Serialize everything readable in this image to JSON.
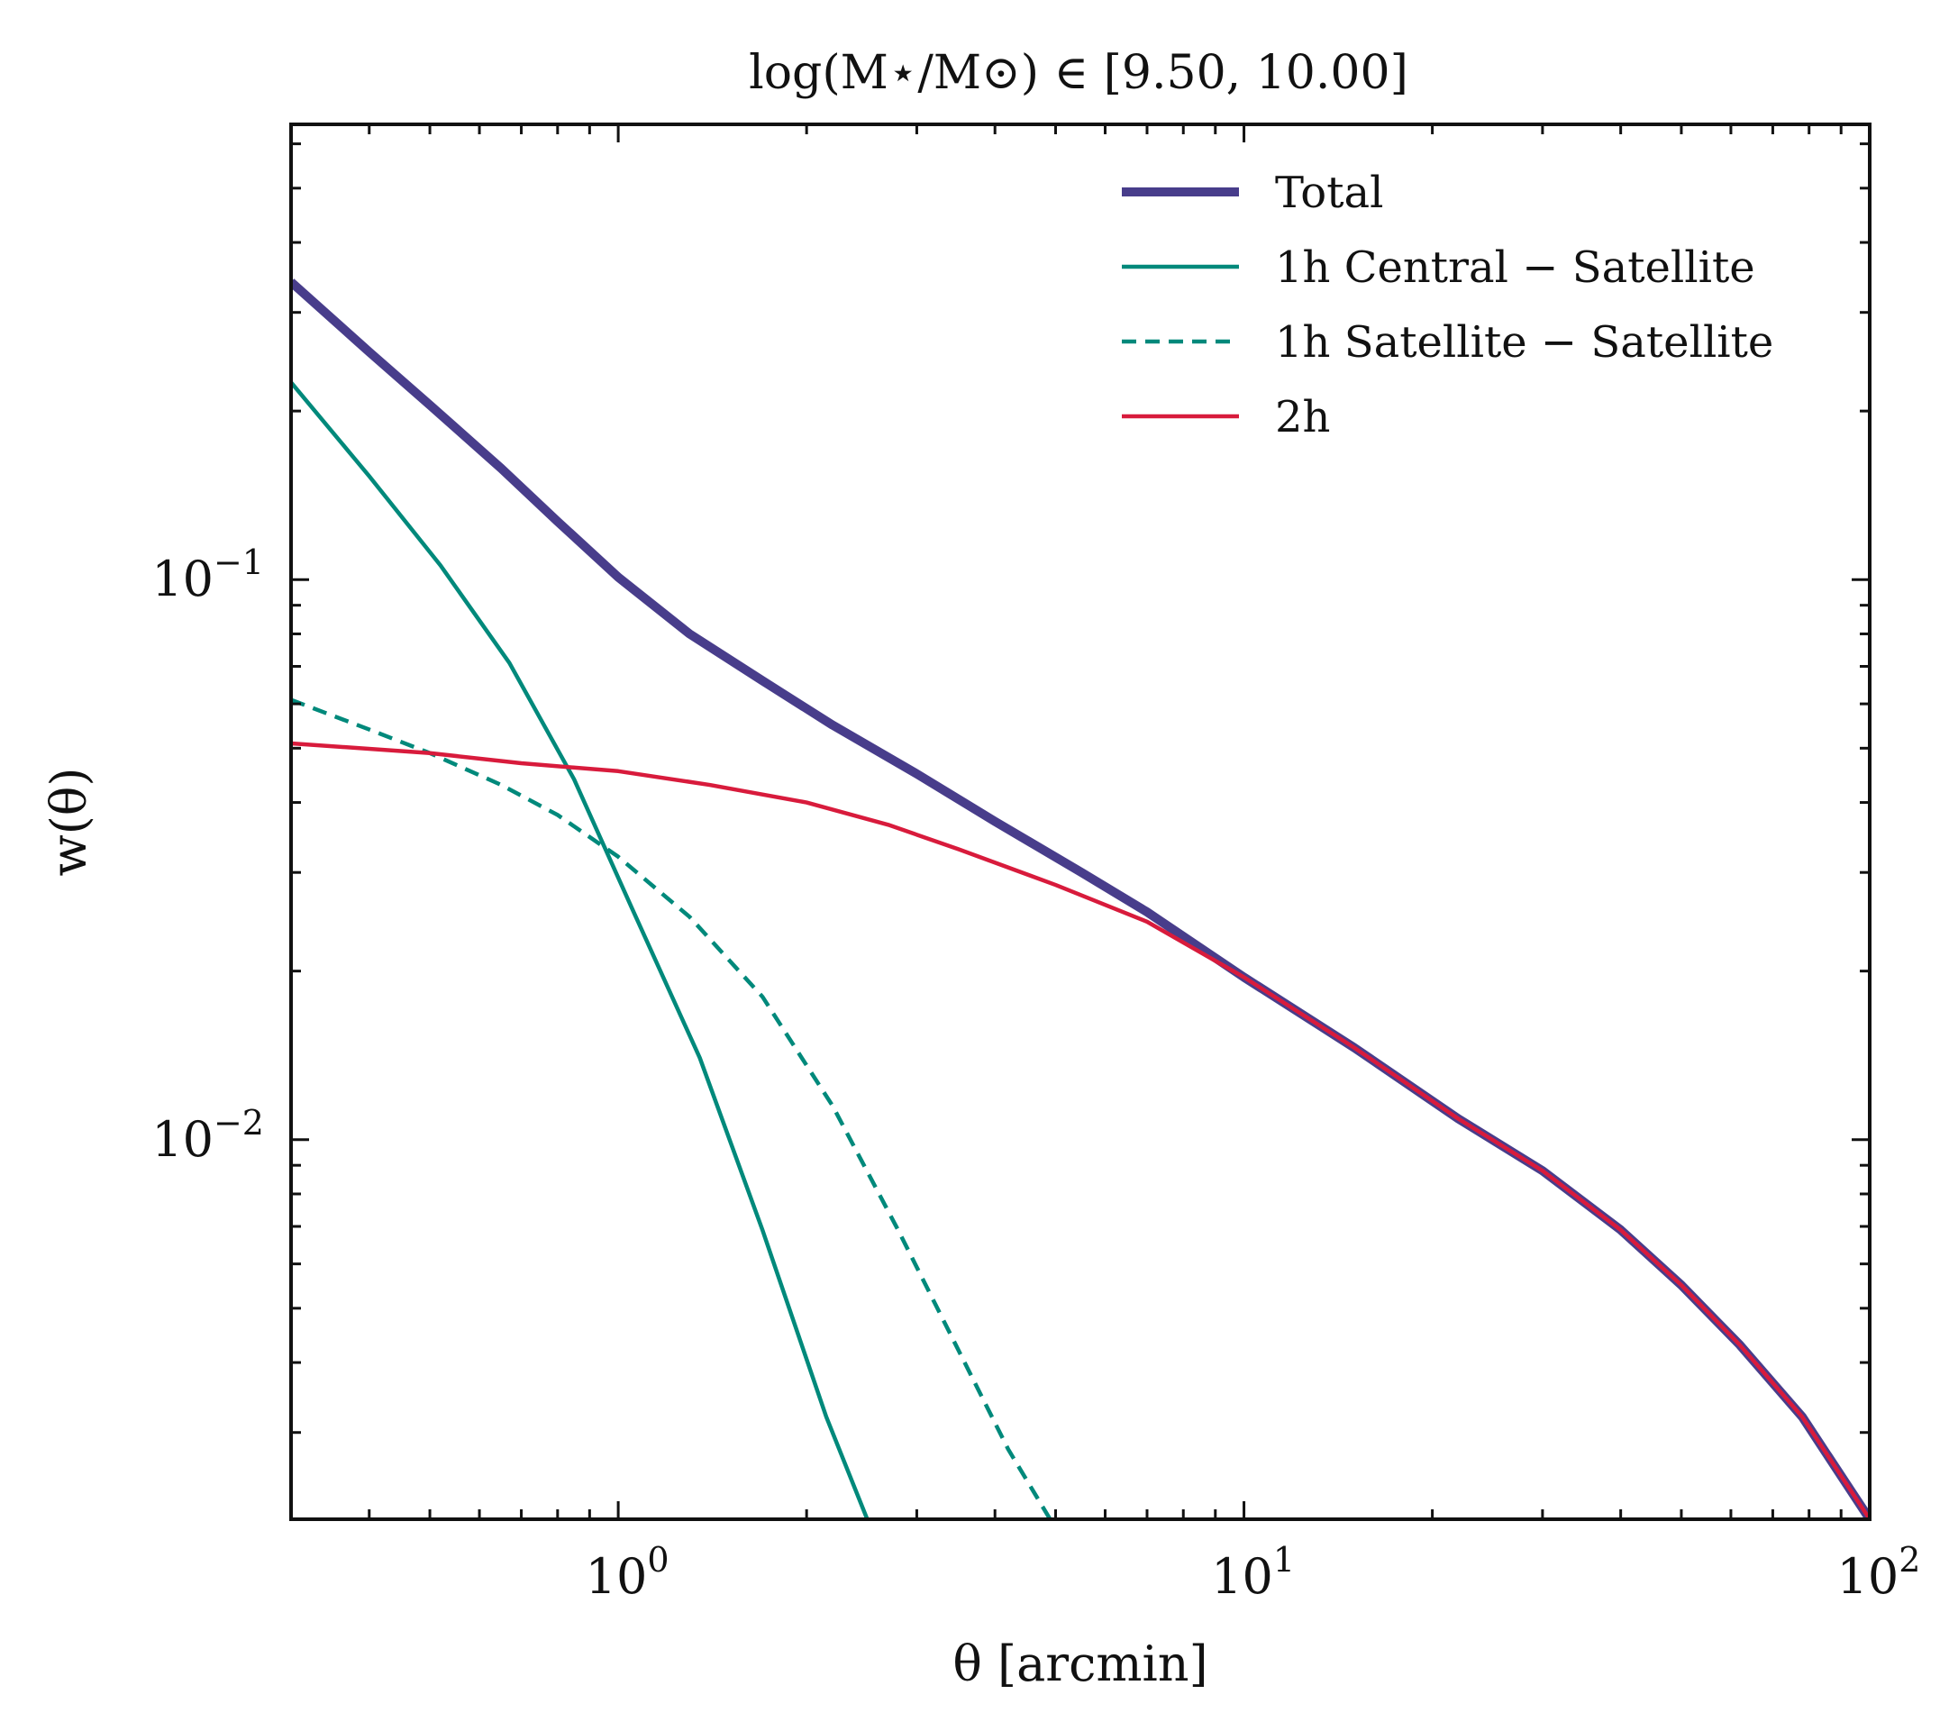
{
  "chart_data": {
    "type": "line",
    "title": "log(M⋆/M⊙) ∈ [9.50, 10.00]",
    "xlabel": "θ [arcmin]",
    "ylabel": "w(θ)",
    "xscale": "log",
    "yscale": "log",
    "xlim": [
      0.3,
      100
    ],
    "ylim": [
      0.0021,
      0.65
    ],
    "grid": false,
    "legend_position": "top-right",
    "x_ticks": [
      {
        "value": 1,
        "base": "10",
        "exp": "0"
      },
      {
        "value": 10,
        "base": "10",
        "exp": "1"
      },
      {
        "value": 100,
        "base": "10",
        "exp": "2"
      }
    ],
    "y_ticks": [
      {
        "value": 0.01,
        "base": "10",
        "exp": "−2"
      },
      {
        "value": 0.1,
        "base": "10",
        "exp": "−1"
      }
    ],
    "series": [
      {
        "name": "Total",
        "color": "#483d8b",
        "style": "solid",
        "width": "thick",
        "x": [
          0.3,
          0.4,
          0.5,
          0.65,
          0.8,
          1.0,
          1.3,
          1.7,
          2.2,
          3.0,
          4.0,
          5.5,
          7.0,
          10.0,
          15.0,
          22.0,
          30.0,
          40.0,
          50.0,
          62.0,
          78.0,
          100.0
        ],
        "y": [
          0.34,
          0.255,
          0.205,
          0.158,
          0.127,
          0.101,
          0.08,
          0.066,
          0.055,
          0.045,
          0.037,
          0.03,
          0.0255,
          0.0195,
          0.0146,
          0.0109,
          0.0088,
          0.0069,
          0.0055,
          0.0043,
          0.0032,
          0.0021
        ]
      },
      {
        "name": "1h Central − Satellite",
        "color": "#00897b",
        "style": "solid",
        "width": "normal",
        "x": [
          0.3,
          0.4,
          0.52,
          0.67,
          0.85,
          1.05,
          1.35,
          1.7,
          2.15,
          2.5
        ],
        "y": [
          0.225,
          0.153,
          0.106,
          0.071,
          0.044,
          0.026,
          0.014,
          0.0069,
          0.0032,
          0.0021
        ]
      },
      {
        "name": "1h Satellite − Satellite",
        "color": "#00897b",
        "style": "dashed",
        "width": "normal",
        "x": [
          0.3,
          0.4,
          0.5,
          0.65,
          0.8,
          1.0,
          1.3,
          1.7,
          2.2,
          2.8,
          3.5,
          4.2,
          4.9
        ],
        "y": [
          0.061,
          0.054,
          0.049,
          0.043,
          0.038,
          0.032,
          0.025,
          0.018,
          0.0115,
          0.0069,
          0.0042,
          0.0028,
          0.0021
        ]
      },
      {
        "name": "2h",
        "color": "#d81b3c",
        "style": "solid",
        "width": "normal",
        "x": [
          0.3,
          0.5,
          0.7,
          1.0,
          1.4,
          2.0,
          2.7,
          3.5,
          5.0,
          7.0,
          10.0,
          15.0,
          22.0,
          30.0,
          40.0,
          50.0,
          62.0,
          78.0,
          100.0
        ],
        "y": [
          0.051,
          0.049,
          0.047,
          0.0455,
          0.043,
          0.04,
          0.0365,
          0.033,
          0.0285,
          0.0245,
          0.0195,
          0.0146,
          0.0109,
          0.0088,
          0.0069,
          0.0055,
          0.0043,
          0.0032,
          0.0021
        ]
      }
    ]
  }
}
